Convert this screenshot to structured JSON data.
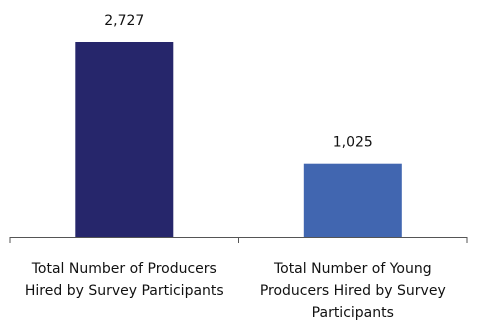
{
  "chart_data": {
    "type": "bar",
    "categories": [
      [
        "Total Number of Producers",
        "Hired by Survey Participants"
      ],
      [
        "Total Number of Young",
        "Producers Hired by Survey",
        "Participants"
      ]
    ],
    "values": [
      2727,
      1025
    ],
    "value_labels": [
      "2,727",
      "1,025"
    ],
    "bar_colors": [
      "#26266b",
      "#4166b0"
    ],
    "axis_color": "#555555",
    "title": "",
    "xlabel": "",
    "ylabel": "",
    "ylim": [
      0,
      2727
    ],
    "grid": false,
    "legend": "none"
  }
}
